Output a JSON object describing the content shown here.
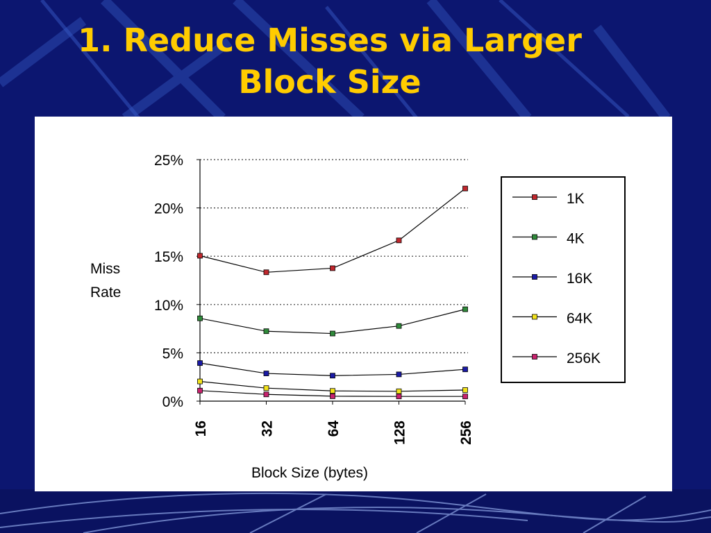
{
  "slide": {
    "title_line1": "1. Reduce Misses via Larger",
    "title_line2": "Block Size"
  },
  "colors": {
    "background": "#0c1670",
    "title": "#ffcc00",
    "panel": "#ffffff"
  },
  "chart_data": {
    "type": "line",
    "title": "",
    "xlabel": "Block Size (bytes)",
    "ylabel_lines": [
      "Miss",
      "Rate"
    ],
    "x": [
      "16",
      "32",
      "64",
      "128",
      "256"
    ],
    "yticks": [
      "0%",
      "5%",
      "10%",
      "15%",
      "20%",
      "25%"
    ],
    "ylim": [
      0,
      25
    ],
    "grid": "horizontal dotted",
    "legend_position": "right",
    "series": [
      {
        "name": "1K",
        "color": "#c0272d",
        "values": [
          15.05,
          13.34,
          13.76,
          16.64,
          22.01
        ]
      },
      {
        "name": "4K",
        "color": "#2f8a3a",
        "values": [
          8.57,
          7.24,
          7.0,
          7.78,
          9.51
        ]
      },
      {
        "name": "16K",
        "color": "#1a1aa6",
        "values": [
          3.94,
          2.87,
          2.64,
          2.77,
          3.29
        ]
      },
      {
        "name": "64K",
        "color": "#f2e21c",
        "values": [
          2.04,
          1.35,
          1.06,
          1.02,
          1.15
        ]
      },
      {
        "name": "256K",
        "color": "#c8226e",
        "values": [
          1.09,
          0.7,
          0.51,
          0.49,
          0.49
        ]
      }
    ]
  }
}
